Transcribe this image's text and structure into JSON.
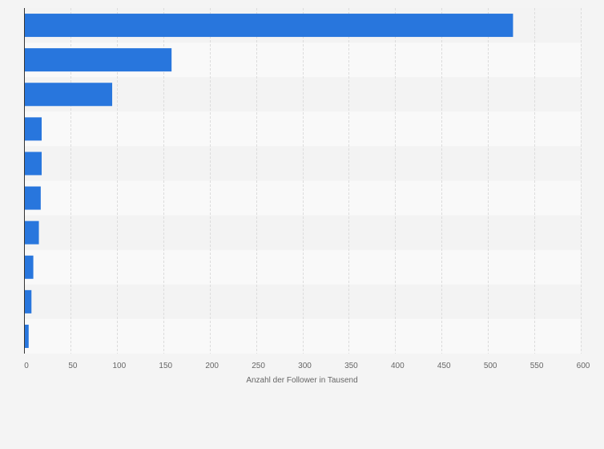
{
  "chart_data": {
    "type": "bar",
    "orientation": "horizontal",
    "title": "",
    "xlabel": "Anzahl der Follower in Tausend",
    "ylabel": "",
    "categories": [
      "",
      "",
      "",
      "",
      "",
      "",
      "",
      "",
      "",
      ""
    ],
    "values": [
      527,
      159,
      95,
      19,
      19,
      18,
      16,
      10,
      8,
      5
    ],
    "xlim": [
      0,
      600
    ],
    "xticks": [
      0,
      50,
      100,
      150,
      200,
      250,
      300,
      350,
      400,
      450,
      500,
      550,
      600
    ],
    "xtick_labels": [
      "0",
      "50",
      "100",
      "150",
      "200",
      "250",
      "300",
      "350",
      "400",
      "450",
      "500",
      "550",
      "600"
    ],
    "grid": true,
    "legend": "none",
    "colors": {
      "bar": "#2876dd",
      "background": "#f4f4f4",
      "plot_row_light": "#f9f9f9",
      "plot_row_dark": "#f3f3f3",
      "grid": "#dcdcdc",
      "axis": "#333333",
      "text": "#666666"
    }
  }
}
